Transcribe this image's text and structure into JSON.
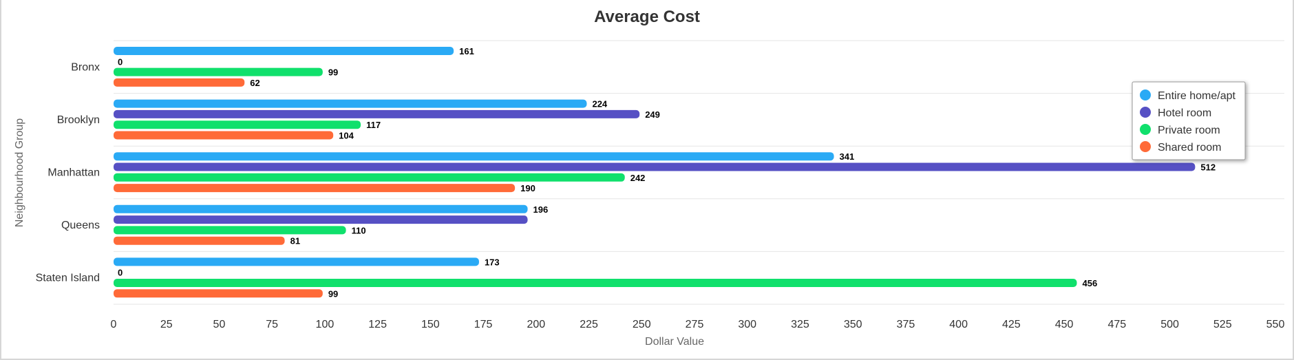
{
  "chart_data": {
    "type": "bar",
    "orientation": "horizontal",
    "title": "Average Cost",
    "xlabel": "Dollar Value",
    "ylabel": "Neighbourhood Group",
    "categories": [
      "Bronx",
      "Brooklyn",
      "Manhattan",
      "Queens",
      "Staten Island"
    ],
    "xlim": [
      0,
      550
    ],
    "xticks": [
      0,
      25,
      50,
      75,
      100,
      125,
      150,
      175,
      200,
      225,
      250,
      275,
      300,
      325,
      350,
      375,
      400,
      425,
      450,
      475,
      500,
      525,
      550
    ],
    "grid": "horizontal category dividers",
    "legend_position": "right",
    "series": [
      {
        "name": "Entire home/apt",
        "color": "#2aaaf5",
        "values": [
          161,
          224,
          341,
          196,
          173
        ],
        "labels": [
          "161",
          "224",
          "341",
          "196",
          "173"
        ]
      },
      {
        "name": "Hotel room",
        "color": "#5650c4",
        "values": [
          0,
          249,
          512,
          196,
          0
        ],
        "labels": [
          "0",
          "249",
          "512",
          "",
          "0"
        ]
      },
      {
        "name": "Private room",
        "color": "#10e06c",
        "values": [
          99,
          117,
          242,
          110,
          456
        ],
        "labels": [
          "99",
          "117",
          "242",
          "110",
          "456"
        ]
      },
      {
        "name": "Shared room",
        "color": "#ff6a38",
        "values": [
          62,
          104,
          190,
          81,
          99
        ],
        "labels": [
          "62",
          "104",
          "190",
          "81",
          "99"
        ]
      }
    ]
  }
}
